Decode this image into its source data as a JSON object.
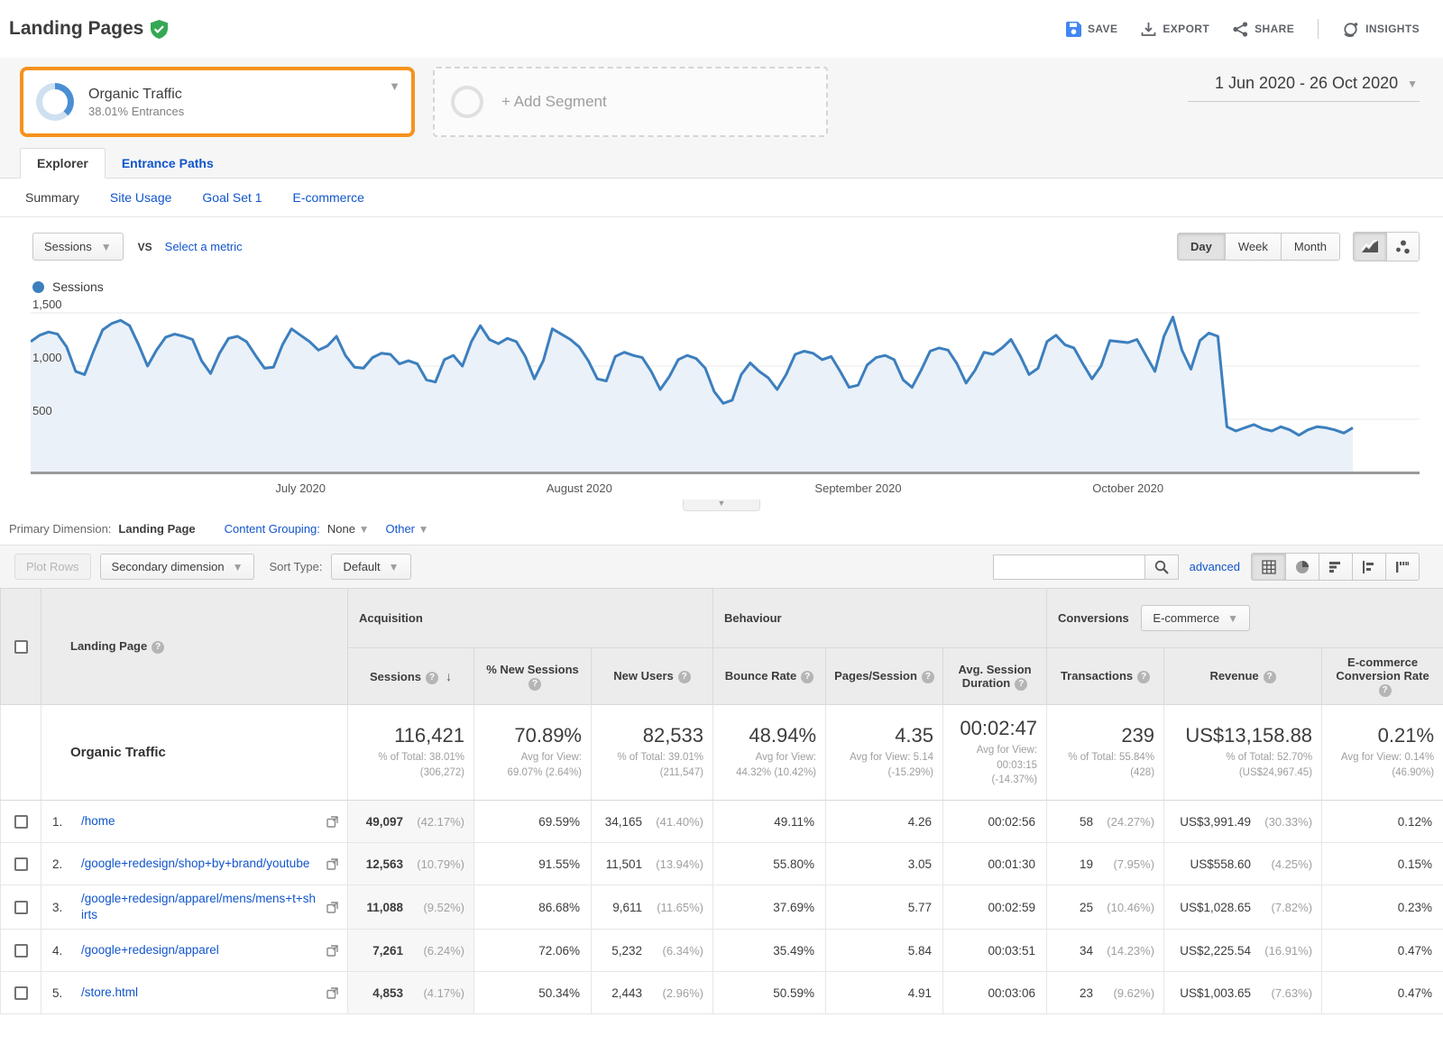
{
  "topbar": {
    "title": "Landing Pages",
    "actions": {
      "save": "SAVE",
      "export": "EXPORT",
      "share": "SHARE",
      "insights": "INSIGHTS"
    }
  },
  "date_range": {
    "label": "1 Jun 2020 - 26 Oct 2020"
  },
  "segments": {
    "current": {
      "name": "Organic Traffic",
      "subtitle": "38.01% Entrances",
      "percent": 38.01
    },
    "add_label": "+ Add Segment"
  },
  "tabs": {
    "explorer": "Explorer",
    "entrance_paths": "Entrance Paths"
  },
  "subtabs": {
    "summary": "Summary",
    "site_usage": "Site Usage",
    "goal_set": "Goal Set 1",
    "ecommerce": "E-commerce"
  },
  "metric_bar": {
    "metric": "Sessions",
    "vs": "VS",
    "select": "Select a metric",
    "granularity": {
      "day": "Day",
      "week": "Week",
      "month": "Month"
    }
  },
  "chart_data": {
    "type": "area",
    "x_start": "1 Jun 2020",
    "x_end": "26 Oct 2020",
    "x_interval": "day",
    "ylim": [
      0,
      1610
    ],
    "grid": true,
    "legend_position": "top-left",
    "yticks": [
      {
        "value": 1500,
        "label": "1,500"
      },
      {
        "value": 1000,
        "label": "1,000"
      },
      {
        "value": 500,
        "label": "500"
      }
    ],
    "xticks": [
      {
        "index": 30,
        "label": "July 2020"
      },
      {
        "index": 61,
        "label": "August 2020"
      },
      {
        "index": 92,
        "label": "September 2020"
      },
      {
        "index": 122,
        "label": "October 2020"
      }
    ],
    "series": [
      {
        "name": "Sessions",
        "color": "#3C7FBE",
        "values": [
          1230,
          1290,
          1320,
          1300,
          1180,
          950,
          920,
          1140,
          1340,
          1400,
          1430,
          1380,
          1200,
          1000,
          1150,
          1270,
          1300,
          1280,
          1250,
          1050,
          930,
          1120,
          1260,
          1280,
          1230,
          1100,
          980,
          990,
          1200,
          1350,
          1290,
          1230,
          1150,
          1190,
          1280,
          1100,
          990,
          980,
          1080,
          1120,
          1110,
          1020,
          1050,
          1020,
          870,
          850,
          1060,
          1100,
          1000,
          1230,
          1380,
          1250,
          1210,
          1260,
          1230,
          1090,
          880,
          1050,
          1350,
          1300,
          1250,
          1180,
          1050,
          880,
          860,
          1090,
          1130,
          1100,
          1080,
          950,
          780,
          900,
          1060,
          1100,
          1070,
          980,
          760,
          650,
          680,
          920,
          1030,
          950,
          890,
          780,
          920,
          1110,
          1140,
          1120,
          1060,
          1090,
          950,
          800,
          820,
          1010,
          1080,
          1100,
          1060,
          870,
          800,
          960,
          1140,
          1170,
          1150,
          1020,
          840,
          960,
          1130,
          1110,
          1170,
          1250,
          1100,
          920,
          980,
          1230,
          1290,
          1200,
          1170,
          1020,
          880,
          1000,
          1240,
          1230,
          1220,
          1250,
          1100,
          950,
          1280,
          1460,
          1150,
          970,
          1240,
          1310,
          1280,
          430,
          390,
          420,
          450,
          410,
          390,
          430,
          400,
          350,
          400,
          430,
          420,
          400,
          370,
          420
        ]
      }
    ]
  },
  "primary_dimension": {
    "label": "Primary Dimension:",
    "selected": "Landing Page",
    "content_grouping_label": "Content Grouping:",
    "content_grouping_value": "None",
    "other": "Other"
  },
  "toolbar": {
    "plot_rows": "Plot Rows",
    "secondary_dimension": "Secondary dimension",
    "sort_type_label": "Sort Type:",
    "sort_type_value": "Default",
    "search_value": "",
    "advanced": "advanced"
  },
  "table": {
    "groups": {
      "acquisition": "Acquisition",
      "behaviour": "Behaviour",
      "conversions": "Conversions",
      "conversions_selector": "E-commerce"
    },
    "columns": {
      "landing_page": "Landing Page",
      "sessions": "Sessions",
      "new_sessions": "% New Sessions",
      "new_users": "New Users",
      "bounce_rate": "Bounce Rate",
      "pages_session": "Pages/Session",
      "avg_duration": "Avg. Session Duration",
      "transactions": "Transactions",
      "revenue": "Revenue",
      "ecr": "E-commerce Conversion Rate"
    },
    "summary": {
      "name": "Organic Traffic",
      "sessions": "116,421",
      "sessions_sub": "% of Total: 38.01% (306,272)",
      "new_sessions": "70.89%",
      "new_sessions_sub": "Avg for View: 69.07% (2.64%)",
      "new_users": "82,533",
      "new_users_sub": "% of Total: 39.01% (211,547)",
      "bounce": "48.94%",
      "bounce_sub": "Avg for View: 44.32% (10.42%)",
      "pages": "4.35",
      "pages_sub": "Avg for View: 5.14 (-15.29%)",
      "duration": "00:02:47",
      "duration_sub": "Avg for View: 00:03:15 (-14.37%)",
      "transactions": "239",
      "transactions_sub": "% of Total: 55.84% (428)",
      "revenue": "US$13,158.88",
      "revenue_sub": "% of Total: 52.70% (US$24,967.45)",
      "ecr": "0.21%",
      "ecr_sub": "Avg for View: 0.14% (46.90%)"
    },
    "rows": [
      {
        "idx": "1.",
        "page": "/home",
        "sessions": "49,097",
        "sessions_pct": "(42.17%)",
        "new_sessions": "69.59%",
        "new_users": "34,165",
        "new_users_pct": "(41.40%)",
        "bounce": "49.11%",
        "pages": "4.26",
        "duration": "00:02:56",
        "transactions": "58",
        "transactions_pct": "(24.27%)",
        "revenue": "US$3,991.49",
        "revenue_pct": "(30.33%)",
        "ecr": "0.12%"
      },
      {
        "idx": "2.",
        "page": "/google+redesign/shop+by+brand/youtube",
        "sessions": "12,563",
        "sessions_pct": "(10.79%)",
        "new_sessions": "91.55%",
        "new_users": "11,501",
        "new_users_pct": "(13.94%)",
        "bounce": "55.80%",
        "pages": "3.05",
        "duration": "00:01:30",
        "transactions": "19",
        "transactions_pct": "(7.95%)",
        "revenue": "US$558.60",
        "revenue_pct": "(4.25%)",
        "ecr": "0.15%"
      },
      {
        "idx": "3.",
        "page": "/google+redesign/apparel/mens/mens+t+shirts",
        "sessions": "11,088",
        "sessions_pct": "(9.52%)",
        "new_sessions": "86.68%",
        "new_users": "9,611",
        "new_users_pct": "(11.65%)",
        "bounce": "37.69%",
        "pages": "5.77",
        "duration": "00:02:59",
        "transactions": "25",
        "transactions_pct": "(10.46%)",
        "revenue": "US$1,028.65",
        "revenue_pct": "(7.82%)",
        "ecr": "0.23%"
      },
      {
        "idx": "4.",
        "page": "/google+redesign/apparel",
        "sessions": "7,261",
        "sessions_pct": "(6.24%)",
        "new_sessions": "72.06%",
        "new_users": "5,232",
        "new_users_pct": "(6.34%)",
        "bounce": "35.49%",
        "pages": "5.84",
        "duration": "00:03:51",
        "transactions": "34",
        "transactions_pct": "(14.23%)",
        "revenue": "US$2,225.54",
        "revenue_pct": "(16.91%)",
        "ecr": "0.47%"
      },
      {
        "idx": "5.",
        "page": "/store.html",
        "sessions": "4,853",
        "sessions_pct": "(4.17%)",
        "new_sessions": "50.34%",
        "new_users": "2,443",
        "new_users_pct": "(2.96%)",
        "bounce": "50.59%",
        "pages": "4.91",
        "duration": "00:03:06",
        "transactions": "23",
        "transactions_pct": "(9.62%)",
        "revenue": "US$1,003.65",
        "revenue_pct": "(7.63%)",
        "ecr": "0.47%"
      }
    ]
  },
  "colors": {
    "accent_blue": "#1155CC",
    "chart_line": "#3C7FBE",
    "chart_fill": "#EAF1F8",
    "highlight_orange": "#F6921E",
    "shield_green": "#34A853",
    "save_blue": "#4285F4"
  }
}
